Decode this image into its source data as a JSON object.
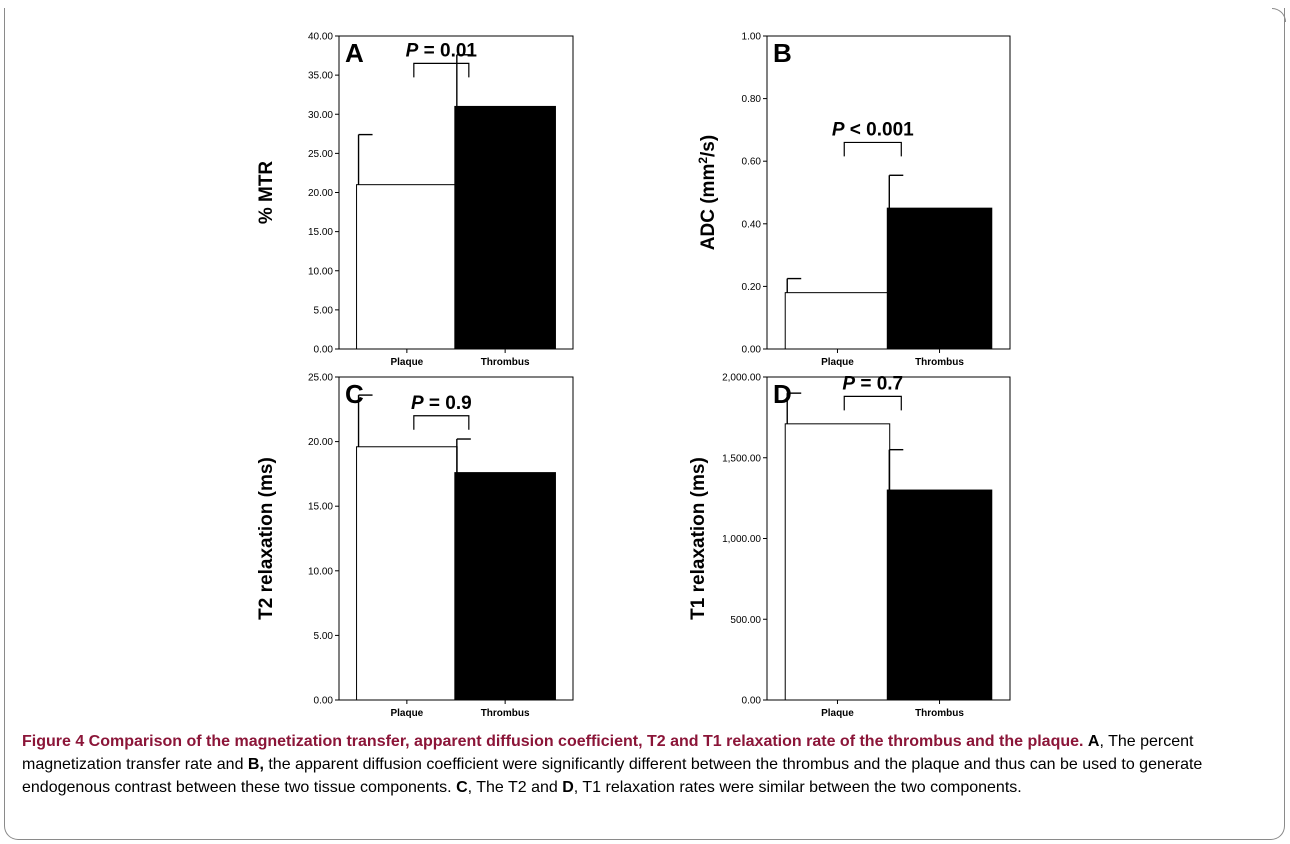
{
  "figure": {
    "caption_title": "Figure 4 Comparison of the magnetization transfer, apparent diffusion coefficient, T2 and T1 relaxation rate of the thrombus and the plaque.",
    "caption_parts": [
      {
        "text": "A",
        "bold": true
      },
      {
        "text": ", The percent magnetization transfer rate and ",
        "bold": false
      },
      {
        "text": "B,",
        "bold": true
      },
      {
        "text": " the apparent diffusion coefficient were significantly different between the thrombus and the plaque and thus can be used to generate endogenous contrast between these two tissue components. ",
        "bold": false
      },
      {
        "text": "C",
        "bold": true
      },
      {
        "text": ", The T2 and ",
        "bold": false
      },
      {
        "text": "D",
        "bold": true
      },
      {
        "text": ", T1 relaxation rates were similar between the two components.",
        "bold": false
      }
    ]
  },
  "colors": {
    "plaque_fill": "#ffffff",
    "thrombus_fill": "#000000",
    "axis": "#000000",
    "caption_title": "#8b1538"
  },
  "chart_data": [
    {
      "type": "bar",
      "panel": "A",
      "ylabel": "% MTR",
      "ylabel_sup": "",
      "ylabel_tail": "",
      "categories": [
        "Plaque",
        "Thrombus"
      ],
      "values": [
        21.0,
        31.0
      ],
      "errors": [
        6.4,
        6.6
      ],
      "ylim": [
        0,
        40
      ],
      "yticks": [
        0,
        5,
        10,
        15,
        20,
        25,
        30,
        35,
        40
      ],
      "ytick_labels": [
        "0.00",
        "5.00",
        "10.00",
        "15.00",
        "20.00",
        "25.00",
        "30.00",
        "35.00",
        "40.00"
      ],
      "p_prefix": "P",
      "p_rest": " = 0.01",
      "bracket_level": 36.5
    },
    {
      "type": "bar",
      "panel": "B",
      "ylabel": "ADC (mm",
      "ylabel_sup": "2",
      "ylabel_tail": "/s)",
      "categories": [
        "Plaque",
        "Thrombus"
      ],
      "values": [
        0.18,
        0.45
      ],
      "errors": [
        0.045,
        0.105
      ],
      "ylim": [
        0,
        1.0
      ],
      "yticks": [
        0,
        0.2,
        0.4,
        0.6,
        0.8,
        1.0
      ],
      "ytick_labels": [
        "0.00",
        "0.20",
        "0.40",
        "0.60",
        "0.80",
        "1.00"
      ],
      "p_prefix": "P",
      "p_rest": " < 0.001",
      "bracket_level": 0.66
    },
    {
      "type": "bar",
      "panel": "C",
      "ylabel": "T2 relaxation (ms)",
      "ylabel_sup": "",
      "ylabel_tail": "",
      "categories": [
        "Plaque",
        "Thrombus"
      ],
      "values": [
        19.6,
        17.6
      ],
      "errors": [
        4.0,
        2.6
      ],
      "ylim": [
        0,
        25
      ],
      "yticks": [
        0,
        5,
        10,
        15,
        20,
        25
      ],
      "ytick_labels": [
        "0.00",
        "5.00",
        "10.00",
        "15.00",
        "20.00",
        "25.00"
      ],
      "p_prefix": "P",
      "p_rest": " = 0.9",
      "bracket_level": 22.0
    },
    {
      "type": "bar",
      "panel": "D",
      "ylabel": "T1 relaxation (ms)",
      "ylabel_sup": "",
      "ylabel_tail": "",
      "categories": [
        "Plaque",
        "Thrombus"
      ],
      "values": [
        1710,
        1300
      ],
      "errors": [
        190,
        250
      ],
      "ylim": [
        0,
        2000
      ],
      "yticks": [
        0,
        500,
        1000,
        1500,
        2000
      ],
      "ytick_labels": [
        "0.00",
        "500.00",
        "1,000.00",
        "1,500.00",
        "2,000.00"
      ],
      "p_prefix": "P",
      "p_rest": " = 0.7",
      "bracket_level": 1880
    }
  ]
}
